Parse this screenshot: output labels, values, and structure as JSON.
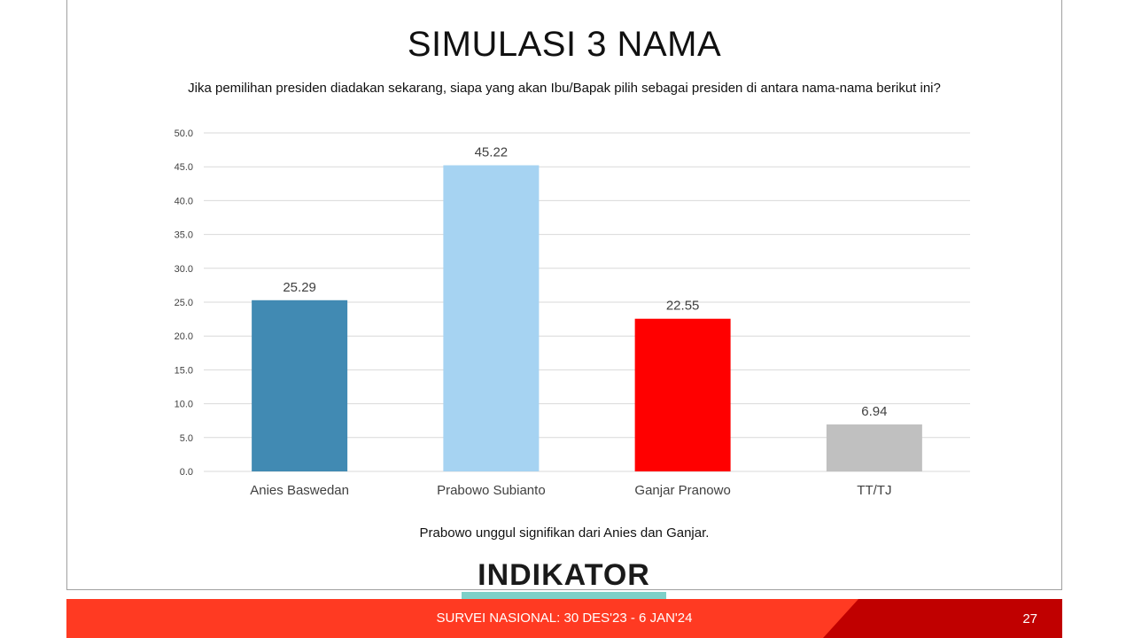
{
  "slide": {
    "title": "SIMULASI 3 NAMA",
    "question": "Jika pemilihan presiden diadakan sekarang, siapa yang akan Ibu/Bapak pilih sebagai presiden di antara nama-nama berikut ini?",
    "note": "Prabowo unggul signifikan dari Anies dan Ganjar.",
    "logo_text": "INDIKATOR",
    "footer_text": "SURVEI NASIONAL: 30 DES'23 - 6 JAN'24",
    "page_number": "27"
  },
  "chart_data": {
    "type": "bar",
    "categories": [
      "Anies Baswedan",
      "Prabowo Subianto",
      "Ganjar Pranowo",
      "TT/TJ"
    ],
    "values": [
      25.29,
      45.22,
      22.55,
      6.94
    ],
    "value_labels": [
      "25.29",
      "45.22",
      "22.55",
      "6.94"
    ],
    "colors": [
      "#418ab3",
      "#a6d3f2",
      "#ff0000",
      "#c0c0c0"
    ],
    "ylim": [
      0,
      50
    ],
    "yticks": [
      "0.0",
      "5.0",
      "10.0",
      "15.0",
      "20.0",
      "25.0",
      "30.0",
      "35.0",
      "40.0",
      "45.0",
      "50.0"
    ],
    "grid": true,
    "legend": "none"
  }
}
